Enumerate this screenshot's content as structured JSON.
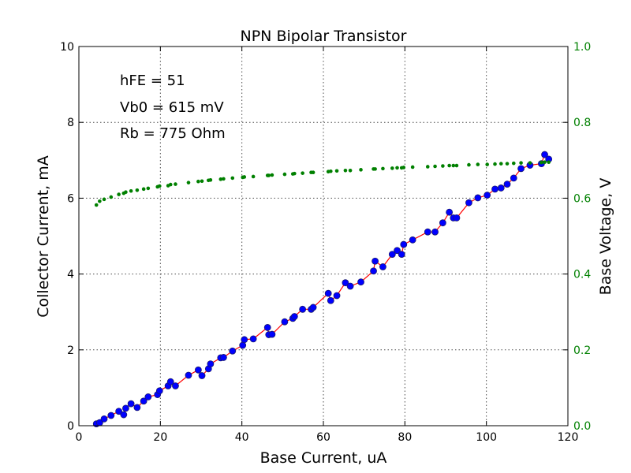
{
  "chart_data": {
    "type": "scatter",
    "title": "NPN Bipolar Transistor",
    "xlabel": "Base Current, uA",
    "ylabel_left": "Collector Current, mA",
    "ylabel_right": "Base Voltage, V",
    "xlim": [
      0,
      120
    ],
    "ylim_left": [
      0,
      10
    ],
    "ylim_right": [
      0.0,
      1.0
    ],
    "x_ticks": [
      "0",
      "20",
      "40",
      "60",
      "80",
      "100",
      "120"
    ],
    "y_left_ticks": [
      "0",
      "2",
      "4",
      "6",
      "8",
      "10"
    ],
    "y_right_ticks": [
      "0.0",
      "0.2",
      "0.4",
      "0.6",
      "0.8",
      "1.0"
    ],
    "grid": true,
    "annotations": [
      "hFE = 51",
      "Vb0 = 615 mV",
      "Rb = 775 Ohm"
    ],
    "colors": {
      "collector_marker": "#0000ff",
      "collector_marker_edge": "#1a1a6e",
      "fit_line": "#ff0000",
      "base_voltage": "#008000",
      "right_axis": "#008000"
    },
    "series": [
      {
        "axis": "left",
        "style": "markers+line",
        "x": [
          4.3,
          5.1,
          6.2,
          7.9,
          9.8,
          11.0,
          11.5,
          12.8,
          14.3,
          15.9,
          17.0,
          19.3,
          19.8,
          21.9,
          22.5,
          23.7,
          26.9,
          29.3,
          30.2,
          31.8,
          32.3,
          34.8,
          35.5,
          37.7,
          40.2,
          40.6,
          42.8,
          46.3,
          46.6,
          47.4,
          50.5,
          52.5,
          52.9,
          54.9,
          57.0,
          57.5,
          61.2,
          61.8,
          63.3,
          65.4,
          66.6,
          69.2,
          72.3,
          72.7,
          74.6,
          76.9,
          78.1,
          79.2,
          79.7,
          81.9,
          85.6,
          87.4,
          89.3,
          90.9,
          91.9,
          92.7,
          95.7,
          97.9,
          100.2,
          102.1,
          103.6,
          105.1,
          106.7,
          108.5,
          110.7,
          113.5,
          114.3,
          115.3
        ],
        "y": [
          0.05,
          0.08,
          0.18,
          0.27,
          0.38,
          0.29,
          0.46,
          0.58,
          0.48,
          0.65,
          0.76,
          0.82,
          0.92,
          1.05,
          1.16,
          1.05,
          1.33,
          1.47,
          1.32,
          1.5,
          1.63,
          1.79,
          1.8,
          1.97,
          2.12,
          2.27,
          2.29,
          2.59,
          2.4,
          2.41,
          2.74,
          2.83,
          2.88,
          3.07,
          3.07,
          3.12,
          3.49,
          3.3,
          3.43,
          3.77,
          3.68,
          3.79,
          4.08,
          4.34,
          4.19,
          4.52,
          4.62,
          4.52,
          4.78,
          4.9,
          5.11,
          5.11,
          5.35,
          5.63,
          5.48,
          5.48,
          5.88,
          6.01,
          6.08,
          6.24,
          6.27,
          6.37,
          6.53,
          6.78,
          6.87,
          6.91,
          7.15,
          7.03
        ]
      },
      {
        "axis": "right",
        "style": "markers",
        "x": [
          4.3,
          5.1,
          6.2,
          7.9,
          9.8,
          11.0,
          11.5,
          12.8,
          14.3,
          15.9,
          17.0,
          19.3,
          19.8,
          21.9,
          22.5,
          23.7,
          26.9,
          29.3,
          30.2,
          31.8,
          32.3,
          34.8,
          35.5,
          37.7,
          40.2,
          40.6,
          42.8,
          46.3,
          46.6,
          47.4,
          50.5,
          52.5,
          52.9,
          54.9,
          57.0,
          57.5,
          61.2,
          61.8,
          63.3,
          65.4,
          66.6,
          69.2,
          72.3,
          72.7,
          74.6,
          76.9,
          78.1,
          79.2,
          79.7,
          81.9,
          85.6,
          87.4,
          89.3,
          90.9,
          91.9,
          92.7,
          95.7,
          97.9,
          100.2,
          102.1,
          103.6,
          105.1,
          106.7,
          108.5,
          110.7,
          113.5,
          114.3,
          115.3
        ],
        "y": [
          0.582,
          0.592,
          0.597,
          0.603,
          0.61,
          0.613,
          0.616,
          0.619,
          0.621,
          0.624,
          0.626,
          0.63,
          0.632,
          0.633,
          0.636,
          0.637,
          0.641,
          0.644,
          0.645,
          0.647,
          0.648,
          0.65,
          0.651,
          0.653,
          0.655,
          0.656,
          0.657,
          0.66,
          0.66,
          0.661,
          0.663,
          0.664,
          0.665,
          0.666,
          0.668,
          0.668,
          0.67,
          0.671,
          0.672,
          0.673,
          0.673,
          0.675,
          0.677,
          0.677,
          0.678,
          0.679,
          0.68,
          0.68,
          0.681,
          0.682,
          0.683,
          0.684,
          0.685,
          0.686,
          0.686,
          0.686,
          0.688,
          0.689,
          0.689,
          0.69,
          0.691,
          0.691,
          0.692,
          0.693,
          0.693,
          0.694,
          0.695,
          0.695
        ]
      }
    ]
  }
}
